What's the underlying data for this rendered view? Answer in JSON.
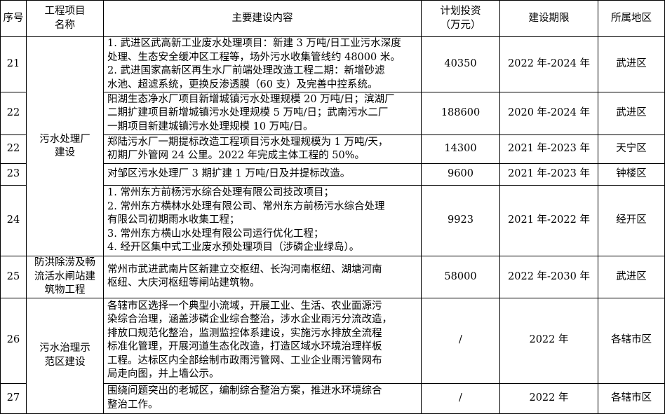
{
  "header": {
    "no": "序号",
    "name": [
      "工程项目",
      "名称"
    ],
    "content": "主要建设内容",
    "investment": [
      "计划投资",
      "（万元）"
    ],
    "period": "建设期限",
    "region": "所属地区"
  },
  "categories": {
    "wwtp": [
      "污水处理厂",
      "建设"
    ],
    "flood": [
      "防洪除涝及畅",
      "流活水闸站建",
      "筑物工程"
    ],
    "demo": [
      "污水治理示",
      "范区建设"
    ]
  },
  "rows": [
    {
      "no": "21",
      "content": [
        "1. 武进区武高新工业废水处理项目：新建 3 万吨/日工业污水深度",
        "处理、生态安全缓冲区工程等，场外污水收集管线约 48000 米。",
        "2. 武进国家高新区再生水厂前端处理改造工程二期：新增砂滤",
        "水池、超滤系统，更换反渗透膜（60 支）及完善中控系统。"
      ],
      "investment": "40350",
      "period": "2022 年-2024 年",
      "region": "武进区"
    },
    {
      "no": "22",
      "content": [
        "阳湖生态净水厂项目新增城镇污水处理规模 20 万吨/日；滨湖厂",
        "二期扩建项目新增城镇污水处理规模 5 万吨/日；武南污水二厂",
        "一期项目新建城镇污水处理规模 10 万吨/日。"
      ],
      "investment": "188600",
      "period": "2020 年-2024 年",
      "region": "武进区"
    },
    {
      "no": "22",
      "content": [
        "郑陆污水厂一期提标改造工程项目污水处理规模为 1 万吨/天，",
        "初期厂外管网 24 公里。2022 年完成主体工程的 50%。"
      ],
      "investment": "14300",
      "period": "2021 年-2023 年",
      "region": "天宁区"
    },
    {
      "no": "23",
      "content": [
        "对邹区污水处理厂 3 期扩建 1 万吨/日及并提标改造。"
      ],
      "investment": "9600",
      "period": "2021 年-2023 年",
      "region": "钟楼区"
    },
    {
      "no": "24",
      "content": [
        "1. 常州东方前杨污水综合处理有限公司技改项目；",
        "2. 常州东方横林水处理有限公司、常州东方前杨污水综合处理",
        "有限公司初期雨水收集工程；",
        "3. 常州东方横山水处理有限公司运行优化工程；",
        "4. 经开区集中式工业废水预处理项目（涉磷企业绿岛）。"
      ],
      "investment": "9923",
      "period": "2021 年-2022 年",
      "region": "经开区"
    },
    {
      "no": "25",
      "content": [
        "常州市武进武南片区新建立交枢纽、长沟河南枢纽、湖塘河南",
        "枢纽、大庆河枢纽等闸站建筑物。"
      ],
      "investment": "58000",
      "period": "2022 年-2030 年",
      "region": "武进区"
    },
    {
      "no": "26",
      "content": [
        "各辖市区选择一个典型小流域，开展工业、生活、农业面源污",
        "染综合治理，涵盖涉磷企业综合整治，涉水企业雨污分流改造，",
        "排放口规范化整治，监测监控体系建设，实施污水排放全流程",
        "标准化管理，开展河道生态化改造，打造区域水环境治理样板",
        "工程。达标区内全部绘制市政雨污管网、工业企业雨污管网布",
        "局走向图，并上墙公示。"
      ],
      "investment": "/",
      "period": "2022 年",
      "region": "各辖市区"
    },
    {
      "no": "27",
      "content": [
        "围绕问题突出的老城区，编制综合整治方案，推进水环境综合",
        "整治工作。"
      ],
      "investment": "/",
      "period": "2022 年",
      "region": "各辖市区"
    }
  ]
}
